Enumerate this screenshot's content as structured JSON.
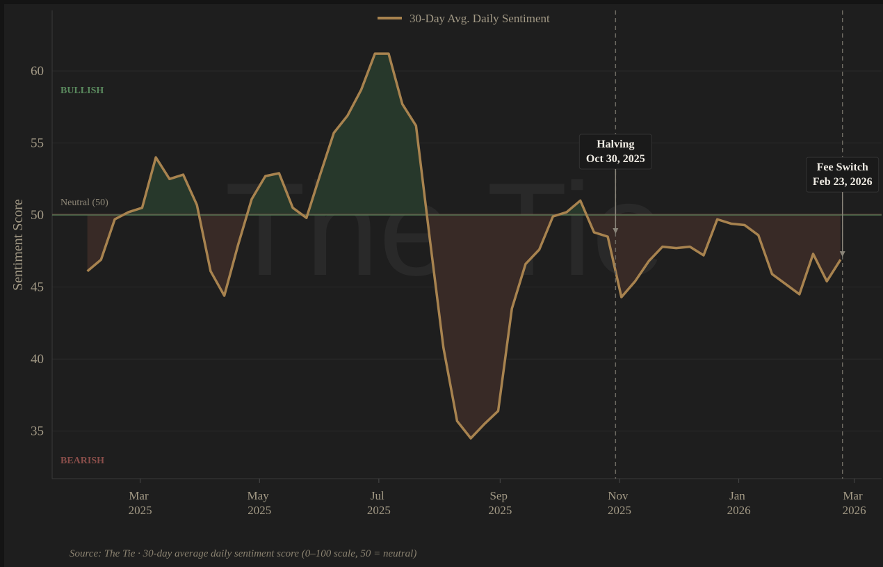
{
  "chart_data": {
    "type": "line",
    "watermark": "The Tie",
    "y_label": "Sentiment Score",
    "source": "Source: The Tie · 30-day average daily sentiment score (0–100 scale, 50 = neutral)",
    "zones": {
      "bullish": "BULLISH",
      "bearish": "BEARISH",
      "neutral_label": "Neutral (50)",
      "neutral": 50,
      "bullish_color": "#5a8a5e",
      "bearish_color": "#8a4e4a",
      "bullish_fill": "#27382b",
      "bearish_fill": "#382a26"
    },
    "x": [
      "2025-02-02",
      "2025-02-09",
      "2025-02-16",
      "2025-02-23",
      "2025-03-02",
      "2025-03-09",
      "2025-03-16",
      "2025-03-23",
      "2025-03-30",
      "2025-04-06",
      "2025-04-13",
      "2025-04-20",
      "2025-04-27",
      "2025-05-04",
      "2025-05-11",
      "2025-05-18",
      "2025-05-25",
      "2025-06-01",
      "2025-06-08",
      "2025-06-15",
      "2025-06-22",
      "2025-06-29",
      "2025-07-06",
      "2025-07-13",
      "2025-07-20",
      "2025-07-27",
      "2025-08-03",
      "2025-08-10",
      "2025-08-17",
      "2025-08-24",
      "2025-08-31",
      "2025-09-07",
      "2025-09-14",
      "2025-09-21",
      "2025-09-28",
      "2025-10-05",
      "2025-10-12",
      "2025-10-19",
      "2025-10-26",
      "2025-11-02",
      "2025-11-09",
      "2025-11-16",
      "2025-11-23",
      "2025-11-30",
      "2025-12-07",
      "2025-12-14",
      "2025-12-21",
      "2025-12-28",
      "2026-01-04",
      "2026-01-11",
      "2026-01-18",
      "2026-01-25",
      "2026-02-01",
      "2026-02-08",
      "2026-02-15",
      "2026-02-22"
    ],
    "series": [
      {
        "name": "30-Day Avg. Daily Sentiment",
        "color": "#a8834f",
        "values": [
          46.1,
          46.9,
          49.7,
          50.2,
          50.5,
          54.0,
          52.5,
          52.8,
          50.7,
          46.1,
          44.4,
          47.9,
          51.1,
          52.7,
          52.9,
          50.5,
          49.8,
          52.8,
          55.7,
          56.9,
          58.7,
          61.2,
          61.2,
          57.7,
          56.2,
          48.4,
          40.8,
          35.7,
          34.5,
          35.5,
          36.4,
          43.5,
          46.6,
          47.6,
          49.9,
          50.2,
          51.0,
          48.8,
          48.5,
          44.3,
          45.4,
          46.8,
          47.8,
          47.7,
          47.8,
          47.2,
          49.7,
          49.4,
          49.3,
          48.6,
          45.9,
          45.2,
          44.5,
          47.3,
          45.4,
          46.9
        ]
      }
    ],
    "xlim": [
      "2025-01-15",
      "2026-03-15"
    ],
    "ylim": [
      31.7,
      64.2
    ],
    "xticks": [
      {
        "value": "2025-03-01",
        "label": "Mar 2025"
      },
      {
        "value": "2025-05-01",
        "label": "May 2025"
      },
      {
        "value": "2025-07-01",
        "label": "Jul 2025"
      },
      {
        "value": "2025-09-01",
        "label": "Sep 2025"
      },
      {
        "value": "2025-11-01",
        "label": "Nov 2025"
      },
      {
        "value": "2026-01-01",
        "label": "Jan 2026"
      },
      {
        "value": "2026-03-01",
        "label": "Mar 2026"
      }
    ],
    "yticks": [
      35,
      40,
      45,
      50,
      55,
      60
    ],
    "grid": true,
    "legend": "top",
    "annotations": [
      {
        "x": "2025-10-30",
        "y": 48.7,
        "lines": [
          "Halving",
          "Oct 30, 2025"
        ]
      },
      {
        "x": "2026-02-23",
        "y": 47.1,
        "lines": [
          "Fee Switch",
          "Feb 23, 2026"
        ]
      }
    ]
  }
}
